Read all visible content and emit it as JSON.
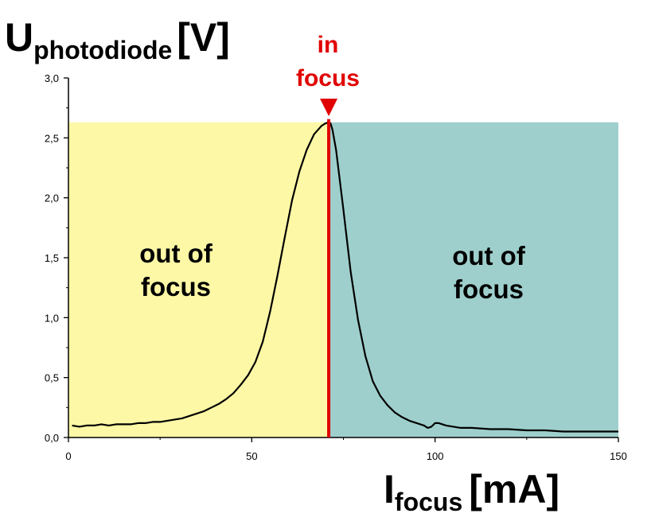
{
  "chart_data": {
    "type": "line",
    "ylabel": {
      "main": "U",
      "sub": "photodiode",
      "unit": "[V]"
    },
    "xlabel": {
      "main": "I",
      "sub": "focus",
      "unit": "[mA]"
    },
    "xlim": [
      0,
      150
    ],
    "ylim": [
      0,
      3.0
    ],
    "x_ticks": [
      "0",
      "50",
      "100",
      "150"
    ],
    "y_ticks": [
      "0,0",
      "0,5",
      "1,0",
      "1,5",
      "2,0",
      "2,5",
      "3,0"
    ],
    "focus_x": 71,
    "region_top_y": 2.63,
    "regions": [
      {
        "label_line1": "out of",
        "label_line2": "focus",
        "color": "#fdf8a6"
      },
      {
        "label_line1": "out of",
        "label_line2": "focus",
        "color": "#9ecfcc"
      }
    ],
    "focus_marker": {
      "line1": "in",
      "line2": "focus",
      "color": "#e00000"
    },
    "series": [
      {
        "x": [
          1,
          3,
          5,
          7,
          9,
          11,
          13,
          15,
          17,
          19,
          21,
          23,
          25,
          27,
          29,
          31,
          33,
          35,
          37,
          39,
          41,
          43,
          45,
          47,
          49,
          51,
          53,
          55,
          57,
          59,
          61,
          63,
          65,
          67,
          69,
          70,
          71,
          71.5,
          72,
          73,
          75,
          77,
          79,
          81,
          83,
          85,
          87,
          89,
          91,
          93,
          95,
          97,
          98,
          99,
          100,
          101,
          103,
          105,
          107,
          110,
          115,
          120,
          125,
          130,
          135,
          140,
          145,
          150
        ],
        "y": [
          0.1,
          0.09,
          0.1,
          0.1,
          0.11,
          0.1,
          0.11,
          0.11,
          0.11,
          0.12,
          0.12,
          0.13,
          0.13,
          0.14,
          0.15,
          0.16,
          0.18,
          0.2,
          0.22,
          0.25,
          0.28,
          0.32,
          0.37,
          0.44,
          0.52,
          0.63,
          0.8,
          1.05,
          1.35,
          1.67,
          1.98,
          2.22,
          2.4,
          2.53,
          2.6,
          2.62,
          2.63,
          2.62,
          2.57,
          2.4,
          1.9,
          1.38,
          0.98,
          0.68,
          0.47,
          0.35,
          0.27,
          0.21,
          0.17,
          0.14,
          0.12,
          0.1,
          0.08,
          0.09,
          0.12,
          0.12,
          0.1,
          0.09,
          0.08,
          0.08,
          0.07,
          0.07,
          0.06,
          0.06,
          0.05,
          0.05,
          0.05,
          0.05
        ]
      }
    ]
  }
}
